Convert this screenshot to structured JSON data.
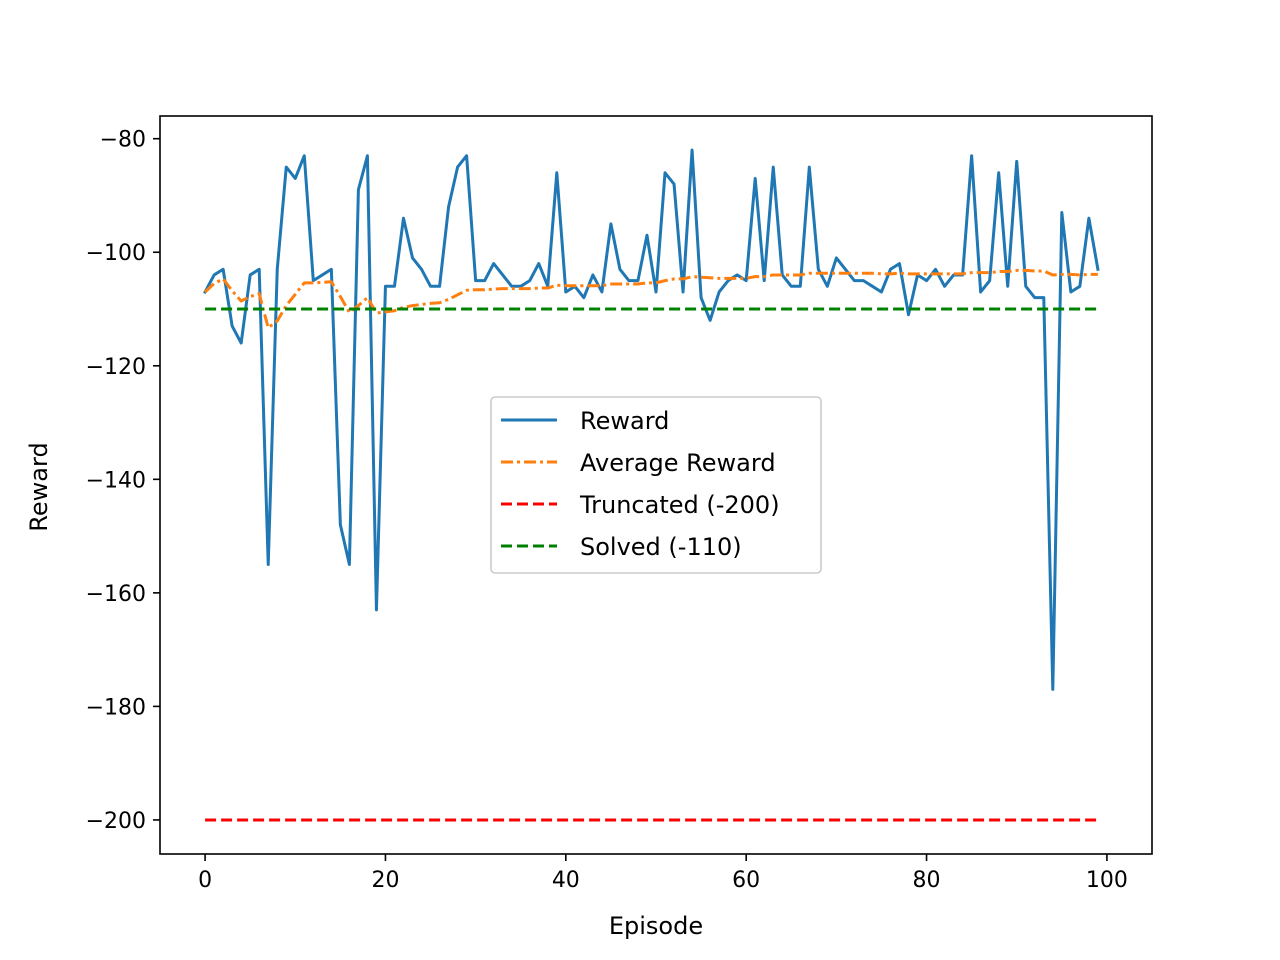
{
  "chart_data": {
    "type": "line",
    "xlabel": "Episode",
    "ylabel": "Reward",
    "xlim": [
      -5,
      105
    ],
    "ylim": [
      -206,
      -76
    ],
    "xticks": [
      0,
      20,
      40,
      60,
      80,
      100
    ],
    "yticks": [
      -80,
      -100,
      -120,
      -140,
      -160,
      -180,
      -200
    ],
    "grid": false,
    "legend_position": "center",
    "series": [
      {
        "name": "Reward",
        "style": "solid",
        "color": "#1f77b4",
        "x": [
          0,
          1,
          2,
          3,
          4,
          5,
          6,
          7,
          8,
          9,
          10,
          11,
          12,
          13,
          14,
          15,
          16,
          17,
          18,
          19,
          20,
          21,
          22,
          23,
          24,
          25,
          26,
          27,
          28,
          29,
          30,
          31,
          32,
          33,
          34,
          35,
          36,
          37,
          38,
          39,
          40,
          41,
          42,
          43,
          44,
          45,
          46,
          47,
          48,
          49,
          50,
          51,
          52,
          53,
          54,
          55,
          56,
          57,
          58,
          59,
          60,
          61,
          62,
          63,
          64,
          65,
          66,
          67,
          68,
          69,
          70,
          71,
          72,
          73,
          74,
          75,
          76,
          77,
          78,
          79,
          80,
          81,
          82,
          83,
          84,
          85,
          86,
          87,
          88,
          89,
          90,
          91,
          92,
          93,
          94,
          95,
          96,
          97,
          98,
          99
        ],
        "values": [
          -107,
          -104,
          -103,
          -113,
          -116,
          -104,
          -103,
          -155,
          -103,
          -85,
          -87,
          -83,
          -105,
          -104,
          -103,
          -148,
          -155,
          -89,
          -83,
          -163,
          -106,
          -106,
          -94,
          -101,
          -103,
          -106,
          -106,
          -92,
          -85,
          -83,
          -105,
          -105,
          -102,
          -104,
          -106,
          -106,
          -105,
          -102,
          -106,
          -86,
          -107,
          -106,
          -108,
          -104,
          -107,
          -95,
          -103,
          -105,
          -105,
          -97,
          -107,
          -86,
          -88,
          -107,
          -82,
          -108,
          -112,
          -107,
          -105,
          -104,
          -105,
          -87,
          -105,
          -85,
          -104,
          -106,
          -106,
          -85,
          -103,
          -106,
          -101,
          -103,
          -105,
          -105,
          -106,
          -107,
          -103,
          -102,
          -111,
          -104,
          -105,
          -103,
          -106,
          -104,
          -104,
          -83,
          -107,
          -105,
          -86,
          -106,
          -84,
          -106,
          -108,
          -108,
          -177,
          -93,
          -107,
          -106,
          -94,
          -103
        ]
      },
      {
        "name": "Average Reward",
        "style": "dashdot",
        "color": "#ff7f0e",
        "x": [
          0,
          1,
          2,
          3,
          4,
          5,
          6,
          7,
          8,
          9,
          10,
          11,
          12,
          13,
          14,
          15,
          16,
          17,
          18,
          19,
          20,
          21,
          22,
          23,
          24,
          25,
          26,
          27,
          28,
          29,
          30,
          31,
          32,
          33,
          34,
          35,
          36,
          37,
          38,
          39,
          40,
          41,
          42,
          43,
          44,
          45,
          46,
          47,
          48,
          49,
          50,
          51,
          52,
          53,
          54,
          55,
          56,
          57,
          58,
          59,
          60,
          61,
          62,
          63,
          64,
          65,
          66,
          67,
          68,
          69,
          70,
          71,
          72,
          73,
          74,
          75,
          76,
          77,
          78,
          79,
          80,
          81,
          82,
          83,
          84,
          85,
          86,
          87,
          88,
          89,
          90,
          91,
          92,
          93,
          94,
          95,
          96,
          97,
          98,
          99
        ],
        "values": [
          -107,
          -105.5,
          -104.7,
          -106.8,
          -108.6,
          -107.8,
          -107.3,
          -113.3,
          -112.1,
          -109.4,
          -107.4,
          -105.4,
          -105.4,
          -105.3,
          -105.2,
          -107.8,
          -110.6,
          -109.4,
          -108.0,
          -110.7,
          -110.5,
          -110.3,
          -109.7,
          -109.4,
          -109.2,
          -109.0,
          -108.9,
          -108.3,
          -107.5,
          -106.7,
          -106.6,
          -106.6,
          -106.5,
          -106.4,
          -106.4,
          -106.4,
          -106.4,
          -106.3,
          -106.3,
          -105.8,
          -105.9,
          -105.9,
          -105.9,
          -105.9,
          -105.9,
          -105.6,
          -105.6,
          -105.6,
          -105.6,
          -105.4,
          -105.4,
          -105.0,
          -104.7,
          -104.7,
          -104.3,
          -104.4,
          -104.5,
          -104.6,
          -104.6,
          -104.6,
          -104.6,
          -104.3,
          -104.3,
          -104.0,
          -104.0,
          -104.0,
          -104.0,
          -103.7,
          -103.7,
          -103.7,
          -103.7,
          -103.7,
          -103.7,
          -103.7,
          -103.7,
          -103.8,
          -103.8,
          -103.7,
          -103.8,
          -103.8,
          -103.8,
          -103.8,
          -103.8,
          -103.8,
          -103.8,
          -103.6,
          -103.6,
          -103.6,
          -103.4,
          -103.4,
          -103.2,
          -103.2,
          -103.3,
          -103.3,
          -104.0,
          -103.9,
          -103.9,
          -104.0,
          -103.9,
          -103.9
        ]
      },
      {
        "name": "Truncated (-200)",
        "style": "dashed",
        "color": "#ff0000",
        "x": [
          0,
          99
        ],
        "values": [
          -200,
          -200
        ]
      },
      {
        "name": "Solved (-110)",
        "style": "dashed",
        "color": "#008000",
        "x": [
          0,
          99
        ],
        "values": [
          -110,
          -110
        ]
      }
    ]
  }
}
